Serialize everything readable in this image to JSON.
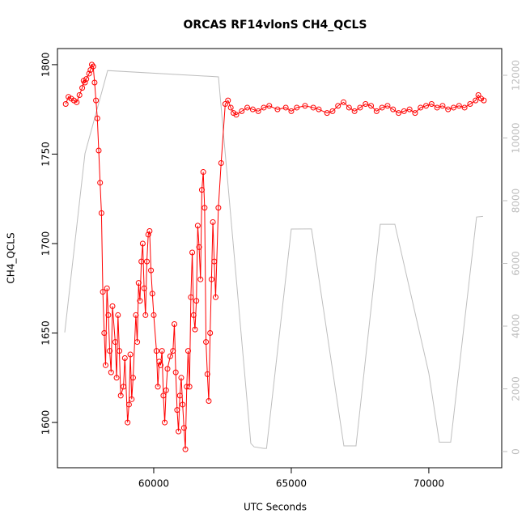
{
  "chart_data": {
    "type": "line",
    "title": "ORCAS RF14vlonS CH4_QCLS",
    "x_label": "UTC Seconds",
    "y_label": "CH4_QCLS",
    "xlim": [
      56500,
      72650
    ],
    "xticks": [
      60000,
      65000,
      70000
    ],
    "ylim": [
      1574.7,
      1809
    ],
    "yticks": [
      1600,
      1650,
      1700,
      1750,
      1800
    ],
    "y2lim": [
      -516,
      12852
    ],
    "y2ticks": [
      0,
      2000,
      4000,
      6000,
      8000,
      10000,
      12000
    ],
    "series": [
      {
        "color": "#ff0000",
        "marker": "circle",
        "x": [
          56800,
          56900,
          57000,
          57100,
          57200,
          57300,
          57400,
          57450,
          57500,
          57550,
          57650,
          57700,
          57750,
          57800,
          57850,
          57900,
          57950,
          58000,
          58050,
          58100,
          58150,
          58200,
          58250,
          58300,
          58350,
          58400,
          58450,
          58500,
          58600,
          58650,
          58700,
          58750,
          58800,
          58900,
          58950,
          59050,
          59100,
          59150,
          59200,
          59250,
          59350,
          59400,
          59450,
          59500,
          59550,
          59600,
          59650,
          59700,
          59750,
          59800,
          59850,
          59900,
          59950,
          60000,
          60100,
          60150,
          60200,
          60250,
          60300,
          60350,
          60400,
          60450,
          60500,
          60600,
          60700,
          60750,
          60800,
          60850,
          60900,
          60950,
          61000,
          61050,
          61100,
          61150,
          61200,
          61250,
          61300,
          61350,
          61400,
          61450,
          61500,
          61550,
          61600,
          61650,
          61700,
          61750,
          61800,
          61850,
          61900,
          61950,
          62000,
          62050,
          62100,
          62150,
          62200,
          62250,
          62350,
          62450,
          62600,
          62700,
          62800,
          62900,
          63000,
          63200,
          63400,
          63600,
          63800,
          64000,
          64200,
          64500,
          64800,
          65000,
          65200,
          65500,
          65800,
          66000,
          66300,
          66500,
          66700,
          66900,
          67100,
          67300,
          67500,
          67700,
          67900,
          68100,
          68300,
          68500,
          68700,
          68900,
          69100,
          69300,
          69500,
          69700,
          69900,
          70100,
          70300,
          70500,
          70700,
          70900,
          71100,
          71300,
          71500,
          71700,
          71800,
          71900,
          72000
        ],
        "values": [
          1778,
          1782,
          1781,
          1780,
          1779,
          1783,
          1787,
          1791,
          1790,
          1792,
          1795,
          1797,
          1800,
          1799,
          1790,
          1780,
          1770,
          1752,
          1734,
          1717,
          1673,
          1650,
          1632,
          1675,
          1660,
          1640,
          1628,
          1665,
          1645,
          1625,
          1660,
          1640,
          1615,
          1620,
          1636,
          1600,
          1610,
          1638,
          1613,
          1625,
          1660,
          1645,
          1678,
          1668,
          1690,
          1700,
          1675,
          1660,
          1690,
          1705,
          1707,
          1685,
          1672,
          1660,
          1640,
          1620,
          1634,
          1632,
          1640,
          1615,
          1600,
          1618,
          1630,
          1637,
          1640,
          1655,
          1628,
          1607,
          1595,
          1615,
          1625,
          1610,
          1597,
          1585,
          1620,
          1640,
          1620,
          1670,
          1695,
          1660,
          1652,
          1668,
          1710,
          1698,
          1680,
          1730,
          1740,
          1720,
          1645,
          1627,
          1612,
          1650,
          1680,
          1712,
          1690,
          1670,
          1720,
          1745,
          1778,
          1780,
          1776,
          1773,
          1772,
          1774,
          1776,
          1775,
          1774,
          1776,
          1777,
          1775,
          1776,
          1774,
          1776,
          1777,
          1776,
          1775,
          1773,
          1774,
          1777,
          1779,
          1776,
          1774,
          1776,
          1778,
          1777,
          1774,
          1776,
          1777,
          1775,
          1773,
          1774,
          1775,
          1773,
          1776,
          1777,
          1778,
          1776,
          1777,
          1775,
          1776,
          1777,
          1776,
          1778,
          1780,
          1783,
          1781,
          1780
        ]
      },
      {
        "color": "#bebebe",
        "axis": "y2",
        "x": [
          56765,
          57500,
          58324,
          62353,
          63529,
          63650,
          64000,
          64100,
          65000,
          65735,
          66912,
          67353,
          68235,
          68765,
          70000,
          70382,
          70794,
          71735,
          71970
        ],
        "values": [
          3800,
          9500,
          12150,
          11950,
          260,
          150,
          100,
          100,
          7097,
          7100,
          180,
          180,
          7250,
          7250,
          2500,
          300,
          300,
          7480,
          7500
        ]
      }
    ]
  }
}
